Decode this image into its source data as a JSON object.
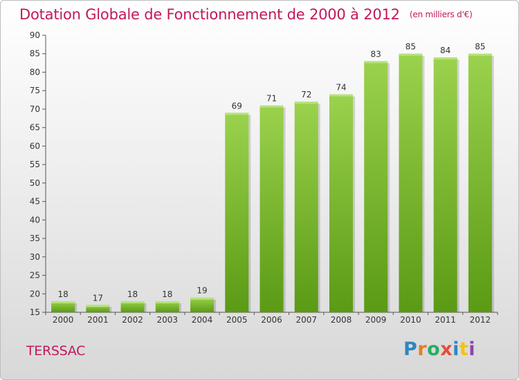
{
  "chart_data": {
    "type": "bar",
    "title": "Dotation Globale de Fonctionnement de 2000 à 2012",
    "unit_note": "(en milliers d'€)",
    "categories": [
      "2000",
      "2001",
      "2002",
      "2003",
      "2004",
      "2005",
      "2006",
      "2007",
      "2008",
      "2009",
      "2010",
      "2011",
      "2012"
    ],
    "values": [
      18,
      17,
      18,
      18,
      19,
      69,
      71,
      72,
      74,
      83,
      85,
      84,
      85
    ],
    "ylim": [
      15,
      90
    ],
    "yticks": [
      15,
      20,
      25,
      30,
      35,
      40,
      45,
      50,
      55,
      60,
      65,
      70,
      75,
      80,
      85,
      90
    ],
    "grid": false,
    "bar_color": "#8cc63f",
    "bar_color_dark": "#5a9a14",
    "title_color": "#c2185b"
  },
  "commune": "TERSSAC",
  "logo": {
    "letters": [
      "P",
      "r",
      "o",
      "x",
      "i",
      "t",
      "i"
    ],
    "colors": [
      "#2e86c1",
      "#e67e22",
      "#27ae60",
      "#e74c3c",
      "#2e86c1",
      "#f1c40f",
      "#8e44ad"
    ]
  }
}
